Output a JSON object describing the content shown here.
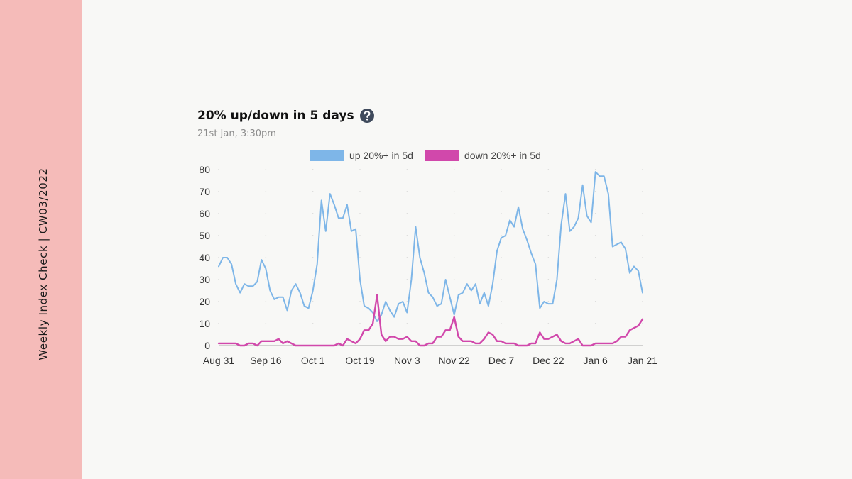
{
  "sidebar": {
    "label": "Weekly Index Check | CW03/2022"
  },
  "header": {
    "title": "20% up/down in 5 days",
    "subtitle": "21st Jan, 3:30pm",
    "help_icon": "question-circle-icon"
  },
  "colors": {
    "up": "#7eb6e8",
    "down": "#d148ab",
    "sidebar": "#f5bbb9"
  },
  "chart_data": {
    "type": "line",
    "title": "20% up/down in 5 days",
    "subtitle": "21st Jan, 3:30pm",
    "xlabel": "",
    "ylabel": "",
    "ylim": [
      0,
      80
    ],
    "yticks": [
      0,
      10,
      20,
      30,
      40,
      50,
      60,
      70,
      80
    ],
    "x_tick_labels": [
      "Aug 31",
      "Sep 16",
      "Oct 1",
      "Oct 19",
      "Nov 3",
      "Nov 22",
      "Dec 7",
      "Dec 22",
      "Jan 6",
      "Jan 21"
    ],
    "legend_position": "top",
    "grid": "dotted",
    "series": [
      {
        "name": "up 20%+ in 5d",
        "color": "#7eb6e8",
        "values": [
          36,
          40,
          40,
          37,
          28,
          24,
          28,
          27,
          27,
          29,
          39,
          35,
          25,
          21,
          22,
          22,
          16,
          25,
          28,
          24,
          18,
          17,
          25,
          37,
          66,
          52,
          69,
          64,
          58,
          58,
          64,
          52,
          53,
          30,
          18,
          17,
          15,
          11,
          14,
          20,
          16,
          13,
          19,
          20,
          15,
          30,
          54,
          40,
          33,
          24,
          22,
          18,
          19,
          30,
          22,
          14,
          23,
          24,
          28,
          25,
          28,
          19,
          24,
          18,
          28,
          43,
          49,
          50,
          57,
          54,
          63,
          53,
          48,
          42,
          37,
          17,
          20,
          19,
          19,
          30,
          55,
          69,
          52,
          54,
          58,
          73,
          59,
          56,
          79,
          77,
          77,
          69,
          45,
          46,
          47,
          44,
          33,
          36,
          34,
          24
        ]
      },
      {
        "name": "down 20%+ in 5d",
        "color": "#d148ab",
        "values": [
          1,
          1,
          1,
          1,
          1,
          0,
          0,
          1,
          1,
          0,
          2,
          2,
          2,
          2,
          3,
          1,
          2,
          1,
          0,
          0,
          0,
          0,
          0,
          0,
          0,
          0,
          0,
          0,
          1,
          0,
          3,
          2,
          1,
          3,
          7,
          7,
          10,
          23,
          5,
          2,
          4,
          4,
          3,
          3,
          4,
          2,
          2,
          0,
          0,
          1,
          1,
          4,
          4,
          7,
          7,
          13,
          4,
          2,
          2,
          2,
          1,
          1,
          3,
          6,
          5,
          2,
          2,
          1,
          1,
          1,
          0,
          0,
          0,
          1,
          1,
          6,
          3,
          3,
          4,
          5,
          2,
          1,
          1,
          2,
          3,
          0,
          0,
          0,
          1,
          1,
          1,
          1,
          1,
          2,
          4,
          4,
          7,
          8,
          9,
          12
        ]
      }
    ]
  }
}
